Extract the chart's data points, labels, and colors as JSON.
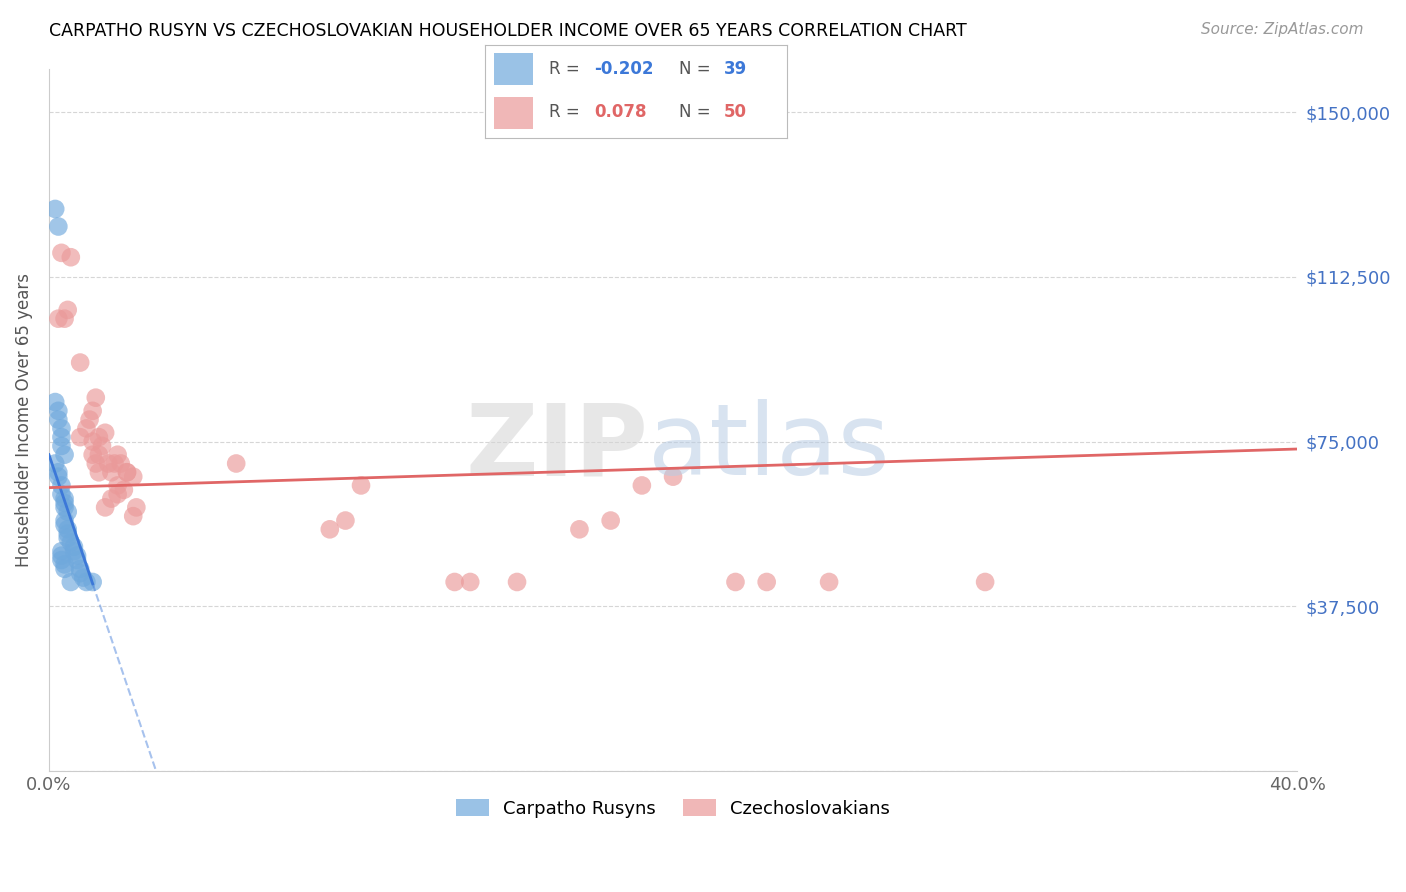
{
  "title": "CARPATHO RUSYN VS CZECHOSLOVAKIAN HOUSEHOLDER INCOME OVER 65 YEARS CORRELATION CHART",
  "source": "Source: ZipAtlas.com",
  "ylabel": "Householder Income Over 65 years",
  "xlim": [
    0.0,
    0.4
  ],
  "ylim": [
    0,
    160000
  ],
  "yticks": [
    0,
    37500,
    75000,
    112500,
    150000
  ],
  "ytick_labels": [
    "",
    "$37,500",
    "$75,000",
    "$112,500",
    "$150,000"
  ],
  "xticks": [
    0.0,
    0.08,
    0.16,
    0.24,
    0.32,
    0.4
  ],
  "xtick_labels": [
    "0.0%",
    "",
    "",
    "",
    "",
    "40.0%"
  ],
  "blue_color": "#6fa8dc",
  "pink_color": "#ea9999",
  "blue_line_color": "#3c78d8",
  "pink_line_color": "#e06666",
  "legend_label_blue": "Carpatho Rusyns",
  "legend_label_pink": "Czechoslovakians",
  "background_color": "#ffffff",
  "grid_color": "#cccccc",
  "blue_x": [
    0.002,
    0.003,
    0.002,
    0.003,
    0.003,
    0.004,
    0.004,
    0.004,
    0.005,
    0.002,
    0.003,
    0.003,
    0.004,
    0.004,
    0.005,
    0.005,
    0.005,
    0.006,
    0.005,
    0.005,
    0.006,
    0.006,
    0.006,
    0.007,
    0.008,
    0.008,
    0.009,
    0.009,
    0.01,
    0.01,
    0.011,
    0.012,
    0.014,
    0.007,
    0.004,
    0.004,
    0.004,
    0.005,
    0.005
  ],
  "blue_y": [
    128000,
    124000,
    84000,
    82000,
    80000,
    78000,
    76000,
    74000,
    72000,
    70000,
    68000,
    67000,
    65000,
    63000,
    62000,
    61000,
    60000,
    59000,
    57000,
    56000,
    55000,
    54000,
    53000,
    52000,
    51000,
    50000,
    49000,
    48000,
    46000,
    45000,
    44000,
    43000,
    43000,
    43000,
    50000,
    49000,
    48000,
    47000,
    46000
  ],
  "pink_x": [
    0.003,
    0.007,
    0.005,
    0.006,
    0.004,
    0.01,
    0.014,
    0.015,
    0.01,
    0.012,
    0.013,
    0.014,
    0.014,
    0.016,
    0.015,
    0.016,
    0.016,
    0.017,
    0.018,
    0.019,
    0.02,
    0.021,
    0.022,
    0.022,
    0.023,
    0.024,
    0.025,
    0.027,
    0.018,
    0.02,
    0.022,
    0.027,
    0.028,
    0.025,
    0.25,
    0.3,
    0.22,
    0.23,
    0.15,
    0.19,
    0.2,
    0.13,
    0.135,
    0.17,
    0.18,
    0.1,
    0.09,
    0.095,
    0.06
  ],
  "pink_y": [
    103000,
    117000,
    103000,
    105000,
    118000,
    93000,
    82000,
    85000,
    76000,
    78000,
    80000,
    75000,
    72000,
    76000,
    70000,
    68000,
    72000,
    74000,
    77000,
    70000,
    68000,
    70000,
    72000,
    65000,
    70000,
    64000,
    68000,
    67000,
    60000,
    62000,
    63000,
    58000,
    60000,
    68000,
    43000,
    43000,
    43000,
    43000,
    43000,
    65000,
    67000,
    43000,
    43000,
    55000,
    57000,
    65000,
    55000,
    57000,
    70000
  ],
  "blue_intercept": 72000,
  "blue_slope": -2000000,
  "pink_intercept": 65000,
  "pink_slope": 25000
}
